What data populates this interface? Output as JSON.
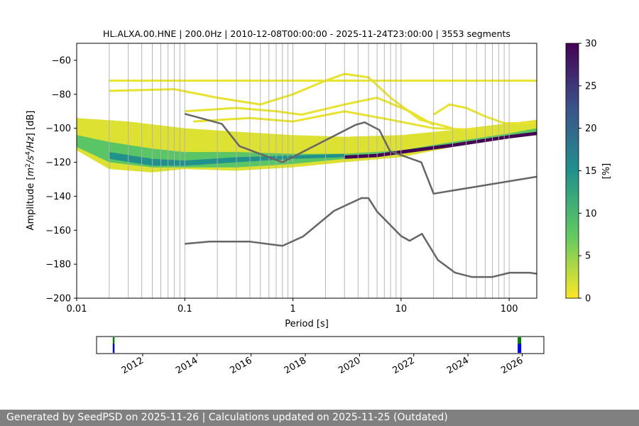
{
  "footer_text": "Generated by SeedPSD on 2025-11-26 | Calculations updated on 2025-11-25 (Outdated)",
  "colormap": [
    "#fde725",
    "#5ec962",
    "#21918c",
    "#3b528b",
    "#440154"
  ],
  "colors": {
    "noise_model": "#666666",
    "grid": "#b0b0b0",
    "availability_green": "#008000",
    "availability_blue": "#0000ff"
  },
  "chart_data": [
    {
      "type": "heatmap",
      "title": "HL.ALXA.00.HNE | 200.0Hz | 2010-12-08T00:00:00 - 2025-11-24T23:00:00 | 3553 segments",
      "xlabel": "Period [s]",
      "ylabel_parts": [
        "Amplitude [",
        "m",
        "2",
        "/",
        "s",
        "4",
        "/Hz",
        "] [dB]"
      ],
      "x_scale": "log",
      "xlim": [
        0.01,
        180
      ],
      "ylim": [
        -200,
        -50
      ],
      "x_ticks": [
        {
          "value": 0.01,
          "label": "0.01"
        },
        {
          "value": 0.1,
          "label": "0.1"
        },
        {
          "value": 1,
          "label": "1"
        },
        {
          "value": 10,
          "label": "10"
        },
        {
          "value": 100,
          "label": "100"
        }
      ],
      "y_ticks": [
        {
          "value": -60,
          "label": "−60"
        },
        {
          "value": -80,
          "label": "−80"
        },
        {
          "value": -100,
          "label": "−100"
        },
        {
          "value": -120,
          "label": "−120"
        },
        {
          "value": -140,
          "label": "−140"
        },
        {
          "value": -160,
          "label": "−160"
        },
        {
          "value": -180,
          "label": "−180"
        },
        {
          "value": -200,
          "label": "−200"
        }
      ],
      "grid": "vertical lines at log-spaced periods",
      "colorbar": {
        "label": "[%]",
        "range": [
          0,
          30
        ],
        "ticks": [
          {
            "value": 0,
            "label": "0"
          },
          {
            "value": 5,
            "label": "5"
          },
          {
            "value": 10,
            "label": "10"
          },
          {
            "value": 15,
            "label": "15"
          },
          {
            "value": 20,
            "label": "20"
          },
          {
            "value": 25,
            "label": "25"
          },
          {
            "value": 30,
            "label": "30"
          }
        ]
      },
      "density_bands": [
        {
          "name": "background-band",
          "percent": 1.5,
          "lower": [
            [
              0.01,
              -113
            ],
            [
              0.02,
              -124
            ],
            [
              0.05,
              -126
            ],
            [
              0.1,
              -124
            ],
            [
              0.3,
              -125
            ],
            [
              1,
              -123
            ],
            [
              3,
              -120
            ],
            [
              10,
              -117
            ],
            [
              30,
              -111
            ],
            [
              100,
              -106
            ],
            [
              180,
              -104
            ]
          ],
          "upper": [
            [
              0.01,
              -94
            ],
            [
              0.03,
              -96
            ],
            [
              0.1,
              -100
            ],
            [
              0.3,
              -102
            ],
            [
              1,
              -104
            ],
            [
              3,
              -105
            ],
            [
              10,
              -104
            ],
            [
              30,
              -101
            ],
            [
              100,
              -97
            ],
            [
              180,
              -95
            ]
          ]
        },
        {
          "name": "core-band",
          "percent": 8,
          "lower": [
            [
              0.01,
              -111
            ],
            [
              0.02,
              -120
            ],
            [
              0.05,
              -123
            ],
            [
              0.1,
              -123
            ],
            [
              0.3,
              -123
            ],
            [
              1,
              -121
            ],
            [
              3,
              -118
            ],
            [
              10,
              -115
            ],
            [
              30,
              -110
            ],
            [
              100,
              -105
            ],
            [
              180,
              -103
            ]
          ],
          "upper": [
            [
              0.01,
              -104
            ],
            [
              0.02,
              -108
            ],
            [
              0.05,
              -112
            ],
            [
              0.1,
              -114
            ],
            [
              0.3,
              -114
            ],
            [
              1,
              -115
            ],
            [
              3,
              -115
            ],
            [
              10,
              -113
            ],
            [
              30,
              -108
            ],
            [
              100,
              -103
            ],
            [
              180,
              -100
            ]
          ]
        },
        {
          "name": "high-band",
          "percent": 15,
          "lower": [
            [
              0.02,
              -118
            ],
            [
              0.05,
              -122
            ],
            [
              0.1,
              -122
            ],
            [
              0.3,
              -120
            ],
            [
              1,
              -118
            ],
            [
              3,
              -117
            ]
          ],
          "upper": [
            [
              0.02,
              -114
            ],
            [
              0.05,
              -118
            ],
            [
              0.1,
              -119
            ],
            [
              0.3,
              -117
            ],
            [
              1,
              -116
            ],
            [
              3,
              -115
            ]
          ]
        },
        {
          "name": "peak-band",
          "percent": 30,
          "lower": [
            [
              3,
              -118
            ],
            [
              6,
              -117
            ],
            [
              10,
              -115
            ],
            [
              30,
              -111
            ],
            [
              100,
              -106
            ],
            [
              180,
              -104
            ]
          ],
          "upper": [
            [
              3,
              -116
            ],
            [
              6,
              -115
            ],
            [
              10,
              -113
            ],
            [
              30,
              -109
            ],
            [
              100,
              -104
            ],
            [
              180,
              -102
            ]
          ]
        }
      ],
      "density_lines": [
        {
          "name": "flat-line",
          "percent": 1,
          "points": [
            [
              0.02,
              -72
            ],
            [
              180,
              -72
            ]
          ]
        },
        {
          "name": "upper-arch",
          "percent": 1,
          "points": [
            [
              0.02,
              -78
            ],
            [
              0.08,
              -77
            ],
            [
              0.2,
              -82
            ],
            [
              0.5,
              -86
            ],
            [
              1,
              -80
            ],
            [
              2,
              -72
            ],
            [
              3,
              -68
            ],
            [
              5,
              -70
            ],
            [
              8,
              -82
            ],
            [
              15,
              -95
            ],
            [
              30,
              -100
            ]
          ]
        },
        {
          "name": "middle-arch",
          "percent": 1,
          "points": [
            [
              0.1,
              -90
            ],
            [
              0.3,
              -88
            ],
            [
              0.7,
              -90
            ],
            [
              1.2,
              -92
            ],
            [
              3,
              -86
            ],
            [
              6,
              -82
            ],
            [
              12,
              -90
            ],
            [
              20,
              -98
            ]
          ]
        },
        {
          "name": "lower-arch",
          "percent": 1,
          "points": [
            [
              0.12,
              -96
            ],
            [
              0.4,
              -94
            ],
            [
              1,
              -96
            ],
            [
              3,
              -90
            ],
            [
              8,
              -95
            ],
            [
              20,
              -100
            ],
            [
              60,
              -101
            ]
          ]
        },
        {
          "name": "right-arch",
          "percent": 1,
          "points": [
            [
              20,
              -92
            ],
            [
              28,
              -86
            ],
            [
              40,
              -88
            ],
            [
              60,
              -93
            ],
            [
              90,
              -97
            ],
            [
              180,
              -97
            ]
          ]
        }
      ],
      "noise_models": [
        {
          "name": "upper-noise-model",
          "points": [
            [
              0.1,
              -91.5
            ],
            [
              0.22,
              -97.4
            ],
            [
              0.32,
              -110.5
            ],
            [
              0.8,
              -120
            ],
            [
              3.8,
              -98
            ],
            [
              4.6,
              -96.5
            ],
            [
              6.3,
              -101
            ],
            [
              7.9,
              -113.5
            ],
            [
              15.4,
              -120
            ],
            [
              20,
              -138.5
            ],
            [
              180,
              -128.5
            ]
          ]
        },
        {
          "name": "lower-noise-model",
          "points": [
            [
              0.1,
              -168
            ],
            [
              0.17,
              -166.7
            ],
            [
              0.4,
              -166.7
            ],
            [
              0.8,
              -169.2
            ],
            [
              1.24,
              -163.7
            ],
            [
              2.4,
              -148.6
            ],
            [
              4.3,
              -141.1
            ],
            [
              5.0,
              -141.1
            ],
            [
              6.0,
              -149
            ],
            [
              10,
              -163.4
            ],
            [
              12,
              -166.2
            ],
            [
              15.6,
              -162.1
            ],
            [
              21.9,
              -177.5
            ],
            [
              31.6,
              -185
            ],
            [
              45,
              -187.5
            ],
            [
              70,
              -187.5
            ],
            [
              101,
              -185
            ],
            [
              154,
              -185
            ],
            [
              180,
              -185.6
            ]
          ]
        }
      ]
    },
    {
      "type": "timeline",
      "x_ticks": [
        {
          "value": 2012,
          "label": "2012"
        },
        {
          "value": 2014,
          "label": "2014"
        },
        {
          "value": 2016,
          "label": "2016"
        },
        {
          "value": 2018,
          "label": "2018"
        },
        {
          "value": 2020,
          "label": "2020"
        },
        {
          "value": 2022,
          "label": "2022"
        },
        {
          "value": 2024,
          "label": "2024"
        },
        {
          "value": 2026,
          "label": "2026"
        }
      ],
      "xlim": [
        2010.3,
        2026.8
      ],
      "events": [
        {
          "time": 2010.93,
          "label": ""
        },
        {
          "time": 2025.9,
          "label": ""
        }
      ]
    }
  ]
}
